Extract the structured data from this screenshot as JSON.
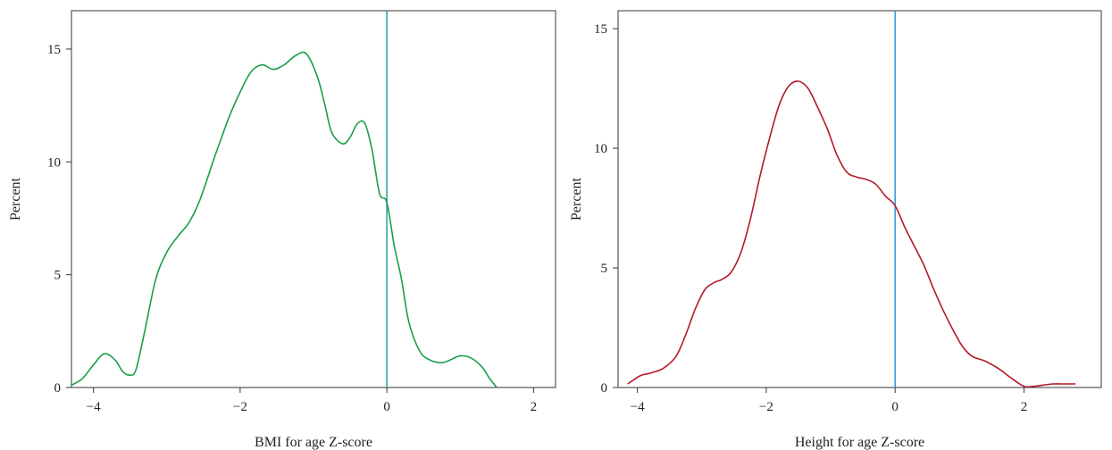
{
  "chart_data": [
    {
      "type": "line",
      "xlabel": "BMI for age Z-score",
      "ylabel": "Percent",
      "xlim": [
        -4.3,
        2.3
      ],
      "ylim": [
        0,
        16.7
      ],
      "xticks": [
        -4,
        -2,
        0,
        2
      ],
      "xtick_labels": [
        "−4",
        "−2",
        "0",
        "2"
      ],
      "yticks": [
        0,
        5,
        10,
        15
      ],
      "ytick_labels": [
        "0",
        "5",
        "10",
        "15"
      ],
      "grid": false,
      "reference_line_x": 0,
      "colors": {
        "line": "#1a9e4a",
        "reference": "#1fa0a0"
      },
      "series": [
        {
          "x": [
            -4.3,
            -4.15,
            -4.0,
            -3.85,
            -3.7,
            -3.6,
            -3.5,
            -3.42,
            -3.3,
            -3.15,
            -3.0,
            -2.85,
            -2.7,
            -2.55,
            -2.35,
            -2.15,
            -2.0,
            -1.85,
            -1.7,
            -1.55,
            -1.4,
            -1.25,
            -1.1,
            -0.95,
            -0.85,
            -0.75,
            -0.6,
            -0.5,
            -0.4,
            -0.3,
            -0.2,
            -0.1,
            0.0,
            0.1,
            0.2,
            0.3,
            0.45,
            0.6,
            0.75,
            0.85,
            1.0,
            1.15,
            1.3,
            1.4,
            1.5
          ],
          "y": [
            0.1,
            0.4,
            1.0,
            1.5,
            1.2,
            0.7,
            0.55,
            0.8,
            2.5,
            4.8,
            6.0,
            6.7,
            7.3,
            8.3,
            10.2,
            12.0,
            13.1,
            14.0,
            14.3,
            14.1,
            14.3,
            14.7,
            14.8,
            13.8,
            12.6,
            11.3,
            10.8,
            11.1,
            11.7,
            11.7,
            10.5,
            8.6,
            8.2,
            6.3,
            4.8,
            2.9,
            1.6,
            1.2,
            1.1,
            1.2,
            1.4,
            1.3,
            0.9,
            0.4,
            0.0
          ]
        }
      ]
    },
    {
      "type": "line",
      "xlabel": "Height for age Z-score",
      "ylabel": "Percent",
      "xlim": [
        -4.3,
        3.2
      ],
      "ylim": [
        0,
        15.75
      ],
      "xticks": [
        -4,
        -2,
        0,
        2
      ],
      "xtick_labels": [
        "−4",
        "−2",
        "0",
        "2"
      ],
      "yticks": [
        0,
        5,
        10,
        15
      ],
      "ytick_labels": [
        "0",
        "5",
        "10",
        "15"
      ],
      "grid": false,
      "reference_line_x": 0,
      "colors": {
        "line": "#b3192a",
        "reference": "#2a9ad4"
      },
      "series": [
        {
          "x": [
            -4.15,
            -3.95,
            -3.8,
            -3.6,
            -3.4,
            -3.25,
            -3.1,
            -2.95,
            -2.8,
            -2.7,
            -2.55,
            -2.4,
            -2.25,
            -2.1,
            -1.95,
            -1.8,
            -1.65,
            -1.5,
            -1.35,
            -1.2,
            -1.05,
            -0.9,
            -0.75,
            -0.6,
            -0.45,
            -0.3,
            -0.15,
            0.0,
            0.15,
            0.3,
            0.45,
            0.6,
            0.75,
            0.9,
            1.05,
            1.2,
            1.4,
            1.6,
            1.8,
            2.0,
            2.15,
            2.3,
            2.45,
            2.6,
            2.8
          ],
          "y": [
            0.15,
            0.5,
            0.6,
            0.8,
            1.3,
            2.2,
            3.3,
            4.1,
            4.4,
            4.5,
            4.8,
            5.6,
            7.0,
            8.8,
            10.4,
            11.8,
            12.6,
            12.8,
            12.5,
            11.7,
            10.8,
            9.7,
            9.0,
            8.8,
            8.7,
            8.5,
            8.0,
            7.6,
            6.7,
            5.9,
            5.1,
            4.1,
            3.2,
            2.4,
            1.7,
            1.3,
            1.1,
            0.8,
            0.4,
            0.05,
            0.05,
            0.1,
            0.15,
            0.15,
            0.15
          ]
        }
      ]
    }
  ]
}
